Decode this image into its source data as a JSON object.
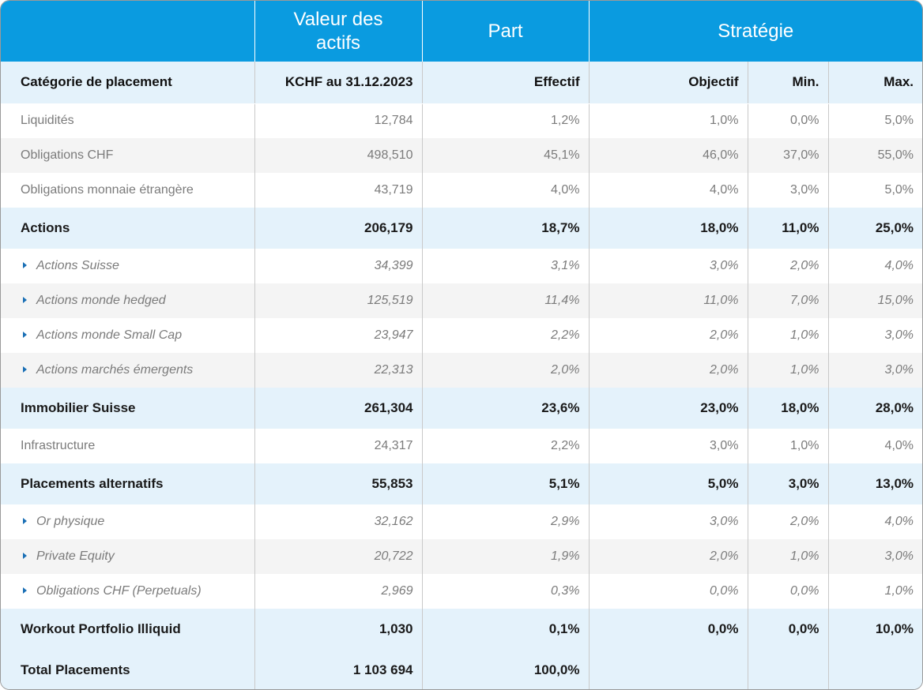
{
  "header": {
    "col1": "",
    "valeur": "Valeur des actifs",
    "part": "Part",
    "strategie": "Stratégie"
  },
  "subheader": {
    "categorie": "Catégorie de placement",
    "valeur": "KCHF au 31.12.2023",
    "effectif": "Effectif",
    "objectif": "Objectif",
    "min": "Min.",
    "max": "Max."
  },
  "rows": [
    {
      "kind": "plain",
      "name": "Liquidités",
      "valeur": "12,784",
      "effectif": "1,2%",
      "objectif": "1,0%",
      "min": "0,0%",
      "max": "5,0%"
    },
    {
      "kind": "alt",
      "name": "Obligations CHF",
      "valeur": "498,510",
      "effectif": "45,1%",
      "objectif": "46,0%",
      "min": "37,0%",
      "max": "55,0%"
    },
    {
      "kind": "plain",
      "name": "Obligations monnaie étrangère",
      "valeur": "43,719",
      "effectif": "4,0%",
      "objectif": "4,0%",
      "min": "3,0%",
      "max": "5,0%"
    },
    {
      "kind": "group",
      "name": "Actions",
      "valeur": "206,179",
      "effectif": "18,7%",
      "objectif": "18,0%",
      "min": "11,0%",
      "max": "25,0%"
    },
    {
      "kind": "child-plain",
      "name": "Actions Suisse",
      "valeur": "34,399",
      "effectif": "3,1%",
      "objectif": "3,0%",
      "min": "2,0%",
      "max": "4,0%"
    },
    {
      "kind": "child-alt",
      "name": "Actions monde hedged",
      "valeur": "125,519",
      "effectif": "11,4%",
      "objectif": "11,0%",
      "min": "7,0%",
      "max": "15,0%"
    },
    {
      "kind": "child-plain",
      "name": "Actions monde Small Cap",
      "valeur": "23,947",
      "effectif": "2,2%",
      "objectif": "2,0%",
      "min": "1,0%",
      "max": "3,0%"
    },
    {
      "kind": "child-alt",
      "name": "Actions marchés émergents",
      "valeur": "22,313",
      "effectif": "2,0%",
      "objectif": "2,0%",
      "min": "1,0%",
      "max": "3,0%"
    },
    {
      "kind": "group",
      "name": "Immobilier Suisse",
      "valeur": "261,304",
      "effectif": "23,6%",
      "objectif": "23,0%",
      "min": "18,0%",
      "max": "28,0%"
    },
    {
      "kind": "plain",
      "name": "Infrastructure",
      "valeur": "24,317",
      "effectif": "2,2%",
      "objectif": "3,0%",
      "min": "1,0%",
      "max": "4,0%"
    },
    {
      "kind": "group",
      "name": "Placements alternatifs",
      "valeur": "55,853",
      "effectif": "5,1%",
      "objectif": "5,0%",
      "min": "3,0%",
      "max": "13,0%"
    },
    {
      "kind": "child-plain",
      "name": "Or physique",
      "valeur": "32,162",
      "effectif": "2,9%",
      "objectif": "3,0%",
      "min": "2,0%",
      "max": "4,0%"
    },
    {
      "kind": "child-alt",
      "name": "Private Equity",
      "valeur": "20,722",
      "effectif": "1,9%",
      "objectif": "2,0%",
      "min": "1,0%",
      "max": "3,0%"
    },
    {
      "kind": "child-plain",
      "name": "Obligations CHF (Perpetuals)",
      "valeur": "2,969",
      "effectif": "0,3%",
      "objectif": "0,0%",
      "min": "0,0%",
      "max": "1,0%"
    },
    {
      "kind": "group",
      "name": "Workout Portfolio Illiquid",
      "valeur": "1,030",
      "effectif": "0,1%",
      "objectif": "0,0%",
      "min": "0,0%",
      "max": "10,0%"
    }
  ],
  "total": {
    "name": "Total Placements",
    "valeur": "1 103 694",
    "effectif": "100,0%",
    "objectif": "",
    "min": "",
    "max": ""
  }
}
